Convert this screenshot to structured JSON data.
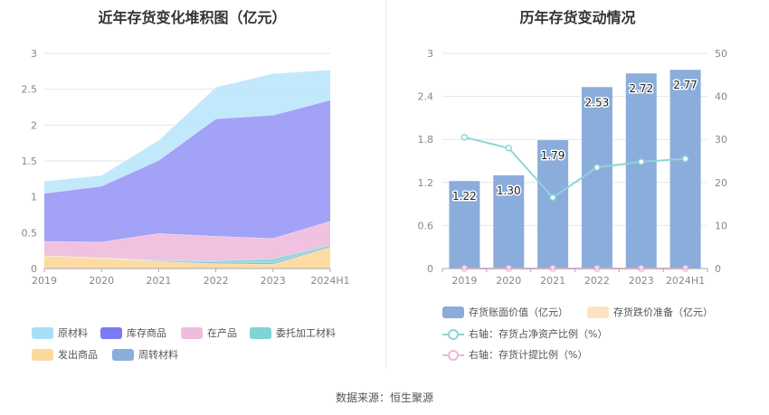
{
  "source_text": "数据来源：恒生聚源",
  "chart_data": [
    {
      "type": "area",
      "stacked": true,
      "title": "近年存货变化堆积图（亿元）",
      "categories": [
        "2019",
        "2020",
        "2021",
        "2022",
        "2023",
        "2024H1"
      ],
      "y_ticks": [
        "0",
        "0.5",
        "1",
        "1.5",
        "2",
        "2.5",
        "3"
      ],
      "ylim": [
        0,
        3
      ],
      "series": [
        {
          "name": "发出商品",
          "color": "#fdd99b",
          "values": [
            0.18,
            0.15,
            0.1,
            0.07,
            0.06,
            0.3
          ]
        },
        {
          "name": "周转材料",
          "color": "#8aaedc",
          "values": [
            0.0,
            0.0,
            0.01,
            0.02,
            0.02,
            0.02
          ]
        },
        {
          "name": "委托加工材料",
          "color": "#8ad7d7",
          "values": [
            0.0,
            0.0,
            0.01,
            0.02,
            0.06,
            0.01
          ]
        },
        {
          "name": "在产品",
          "color": "#f0bcdd",
          "values": [
            0.2,
            0.22,
            0.37,
            0.34,
            0.28,
            0.33
          ]
        },
        {
          "name": "库存商品",
          "color": "#9a9af6",
          "values": [
            0.67,
            0.78,
            1.02,
            1.64,
            1.72,
            1.69
          ]
        },
        {
          "name": "原材料",
          "color": "#bde6fb",
          "values": [
            0.17,
            0.15,
            0.28,
            0.44,
            0.58,
            0.42
          ]
        }
      ],
      "legend": [
        {
          "name": "原材料",
          "color": "#a7dff7"
        },
        {
          "name": "库存商品",
          "color": "#7a7af2"
        },
        {
          "name": "在产品",
          "color": "#f0bcdd"
        },
        {
          "name": "委托加工材料",
          "color": "#7fd5d5"
        },
        {
          "name": "发出商品",
          "color": "#fdd99b"
        },
        {
          "name": "周转材料",
          "color": "#8aaedc"
        }
      ]
    },
    {
      "type": "bar+line",
      "title": "历年存货变动情况",
      "categories": [
        "2019",
        "2020",
        "2021",
        "2022",
        "2023",
        "2024H1"
      ],
      "left_ticks": [
        "0",
        "0.6",
        "1.2",
        "1.8",
        "2.4",
        "3"
      ],
      "right_ticks": [
        "0",
        "10",
        "20",
        "30",
        "40",
        "50"
      ],
      "ylim_left": [
        0,
        3
      ],
      "ylim_right": [
        0,
        50
      ],
      "bars": {
        "name": "存货账面价值（亿元）",
        "color": "#8aaddb",
        "values": [
          1.22,
          1.3,
          1.79,
          2.53,
          2.72,
          2.77
        ],
        "labels": [
          "1.22",
          "1.30",
          "1.79",
          "2.53",
          "2.72",
          "2.77"
        ]
      },
      "bars2": {
        "name": "存货跌价准备（亿元）",
        "color": "#fde4c0",
        "values": [
          0,
          0,
          0,
          0,
          0,
          0
        ]
      },
      "lines": [
        {
          "name": "右轴：存货占净资产比例（%）",
          "color": "#8ed4d8",
          "values": [
            30.5,
            28,
            16.5,
            23.5,
            24.8,
            25.5
          ]
        },
        {
          "name": "右轴：存货计提比例（%）",
          "color": "#f2b6d8",
          "values": [
            0,
            0,
            0,
            0,
            0,
            0
          ]
        }
      ]
    }
  ]
}
